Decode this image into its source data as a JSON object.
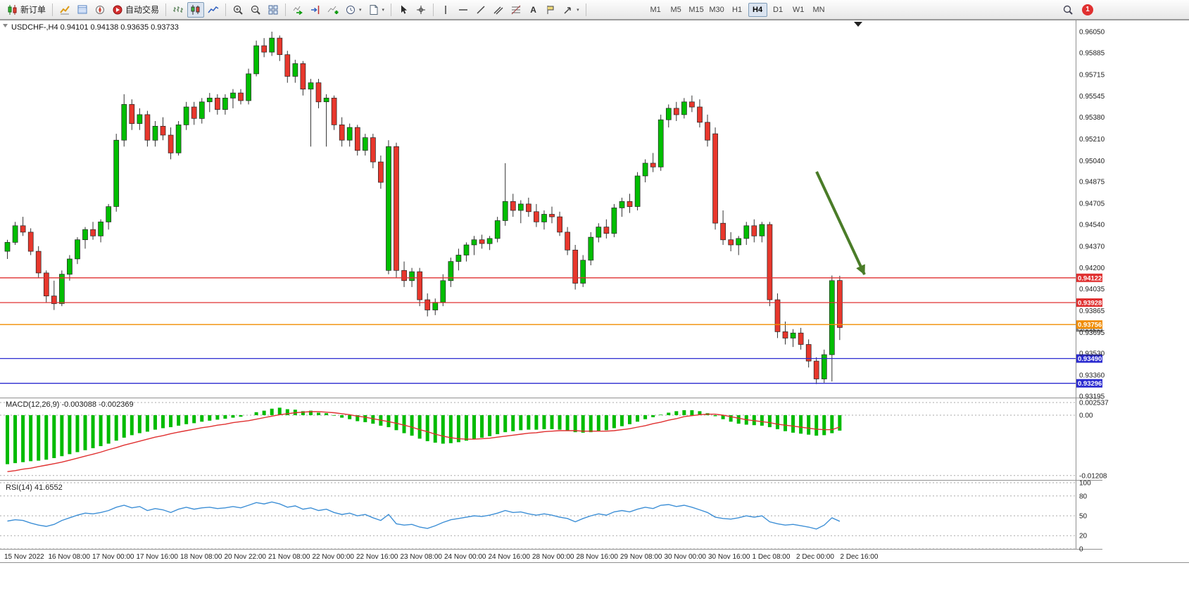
{
  "toolbar": {
    "new_order_label": "新订单",
    "auto_trading_label": "自动交易",
    "timeframes": [
      "M1",
      "M5",
      "M15",
      "M30",
      "H1",
      "H4",
      "D1",
      "W1",
      "MN"
    ],
    "active_timeframe": "H4",
    "notification_count": "1",
    "caret_glyph": "▾",
    "text_tool_glyph": "A",
    "icon_names": [
      "new-order",
      "market-watch",
      "data-window",
      "navigator",
      "auto-trading",
      "bar-chart",
      "candlestick-chart",
      "line-chart",
      "zoom-in",
      "zoom-out",
      "tile-windows",
      "auto-scroll",
      "chart-shift",
      "indicators",
      "periods",
      "templates",
      "cursor",
      "crosshair",
      "vertical-line",
      "horizontal-line",
      "trendline",
      "equidistant-channel",
      "fibonacci",
      "text",
      "text-label",
      "arrows",
      "search",
      "notifications"
    ]
  },
  "chart": {
    "header_symbol": "USDCHF-,H4",
    "header_ohlc": "0.94101 0.94138 0.93635 0.93733",
    "price_axis_labels": [
      "0.96050",
      "0.95885",
      "0.95715",
      "0.95545",
      "0.95380",
      "0.95210",
      "0.95040",
      "0.94875",
      "0.94705",
      "0.94540",
      "0.94370",
      "0.94200",
      "0.94035",
      "0.93865",
      "0.93695",
      "0.93530",
      "0.93360",
      "0.93195"
    ],
    "time_axis_labels": [
      "15 Nov 2022",
      "16 Nov 08:00",
      "17 Nov 00:00",
      "17 Nov 16:00",
      "18 Nov 08:00",
      "20 Nov 22:00",
      "21 Nov 08:00",
      "22 Nov 00:00",
      "22 Nov 16:00",
      "23 Nov 08:00",
      "24 Nov 00:00",
      "24 Nov 16:00",
      "28 Nov 00:00",
      "28 Nov 16:00",
      "29 Nov 08:00",
      "30 Nov 00:00",
      "30 Nov 16:00",
      "1 Dec 08:00",
      "2 Dec 00:00",
      "2 Dec 16:00"
    ],
    "hlines": [
      {
        "price": 0.94122,
        "label": "0.94122",
        "color": "#e03131"
      },
      {
        "price": 0.93928,
        "label": "0.93928",
        "color": "#e03131"
      },
      {
        "price": 0.93756,
        "label": "0.93756",
        "color": "#f08c00"
      },
      {
        "price": 0.9349,
        "label": "0.93490",
        "color": "#2b2bd0"
      },
      {
        "price": 0.93296,
        "label": "0.93296",
        "color": "#2b2bd0"
      }
    ],
    "current_price": {
      "label": "0.93733",
      "color": "#7a7a7a"
    },
    "arrow_annotation": {
      "color": "#4a7c28"
    },
    "colors": {
      "bull": "#00BE00",
      "bear": "#E8372C",
      "wick": "#333333",
      "macd_hist": "#00BB00",
      "macd_signal": "#E03030",
      "rsi_line": "#3D8FD6",
      "grid": "#aaaaaa",
      "frame": "#909090"
    }
  },
  "macd_panel": {
    "title": "MACD(12,26,9)",
    "value_main": "-0.003088",
    "value_signal": "-0.002369",
    "scale_labels": [
      "0.002537",
      "0.00",
      "-0.01208"
    ],
    "scale_values": [
      0.002537,
      0,
      -0.01208
    ]
  },
  "rsi_panel": {
    "title": "RSI(14)",
    "value": "41.6552",
    "scale_labels": [
      "100",
      "80",
      "50",
      "20",
      "0"
    ],
    "scale_values": [
      100,
      80,
      50,
      20,
      0
    ]
  },
  "chart_data": {
    "type": "candlestick",
    "symbol": "USDCHF-",
    "timeframe": "H4",
    "y_axis_range": [
      0.93195,
      0.9605
    ],
    "macd_axis": {
      "max": 0.002537,
      "min": -0.01208
    },
    "rsi_axis": {
      "min": 0,
      "max": 100
    },
    "ohlc": [
      [
        0.9433,
        0.9442,
        0.9427,
        0.944
      ],
      [
        0.944,
        0.9456,
        0.9438,
        0.9453
      ],
      [
        0.9453,
        0.946,
        0.9445,
        0.9448
      ],
      [
        0.9448,
        0.9451,
        0.943,
        0.9433
      ],
      [
        0.9433,
        0.9437,
        0.9412,
        0.9416
      ],
      [
        0.9416,
        0.9418,
        0.9393,
        0.9398
      ],
      [
        0.9398,
        0.941,
        0.9387,
        0.9392
      ],
      [
        0.9392,
        0.9418,
        0.939,
        0.9415
      ],
      [
        0.9415,
        0.943,
        0.941,
        0.9427
      ],
      [
        0.9427,
        0.9444,
        0.9423,
        0.9442
      ],
      [
        0.9442,
        0.9452,
        0.9435,
        0.945
      ],
      [
        0.945,
        0.9456,
        0.9442,
        0.9445
      ],
      [
        0.9445,
        0.9458,
        0.944,
        0.9456
      ],
      [
        0.9456,
        0.947,
        0.945,
        0.9468
      ],
      [
        0.9468,
        0.9525,
        0.9464,
        0.952
      ],
      [
        0.952,
        0.9556,
        0.9515,
        0.9548
      ],
      [
        0.9548,
        0.9552,
        0.9528,
        0.9533
      ],
      [
        0.9533,
        0.9545,
        0.9528,
        0.954
      ],
      [
        0.954,
        0.9543,
        0.9515,
        0.952
      ],
      [
        0.952,
        0.9535,
        0.9515,
        0.9531
      ],
      [
        0.9531,
        0.9538,
        0.952,
        0.9524
      ],
      [
        0.9524,
        0.953,
        0.9505,
        0.951
      ],
      [
        0.951,
        0.9535,
        0.9508,
        0.9532
      ],
      [
        0.9532,
        0.955,
        0.9528,
        0.9546
      ],
      [
        0.9546,
        0.955,
        0.9532,
        0.9537
      ],
      [
        0.9537,
        0.9553,
        0.9533,
        0.955
      ],
      [
        0.955,
        0.9557,
        0.9542,
        0.9553
      ],
      [
        0.9553,
        0.9556,
        0.954,
        0.9544
      ],
      [
        0.9544,
        0.9556,
        0.954,
        0.9553
      ],
      [
        0.9553,
        0.956,
        0.9545,
        0.9557
      ],
      [
        0.9557,
        0.956,
        0.9548,
        0.9551
      ],
      [
        0.9551,
        0.9576,
        0.9548,
        0.9572
      ],
      [
        0.9572,
        0.9598,
        0.957,
        0.9594
      ],
      [
        0.9594,
        0.96,
        0.9585,
        0.9589
      ],
      [
        0.9589,
        0.9605,
        0.9586,
        0.96
      ],
      [
        0.96,
        0.9602,
        0.9582,
        0.9587
      ],
      [
        0.9587,
        0.959,
        0.9565,
        0.957
      ],
      [
        0.957,
        0.9583,
        0.9565,
        0.958
      ],
      [
        0.958,
        0.9582,
        0.9555,
        0.956
      ],
      [
        0.956,
        0.9568,
        0.9515,
        0.9565
      ],
      [
        0.9565,
        0.9568,
        0.9545,
        0.955
      ],
      [
        0.955,
        0.9556,
        0.9515,
        0.9553
      ],
      [
        0.9553,
        0.9555,
        0.9528,
        0.9532
      ],
      [
        0.9532,
        0.9538,
        0.9515,
        0.952
      ],
      [
        0.952,
        0.9533,
        0.9515,
        0.953
      ],
      [
        0.953,
        0.9532,
        0.9508,
        0.9512
      ],
      [
        0.9512,
        0.9525,
        0.9508,
        0.9522
      ],
      [
        0.9522,
        0.9525,
        0.9498,
        0.9503
      ],
      [
        0.9503,
        0.9508,
        0.9482,
        0.9487
      ],
      [
        0.9418,
        0.952,
        0.9415,
        0.9515
      ],
      [
        0.9515,
        0.9518,
        0.9412,
        0.9418
      ],
      [
        0.9418,
        0.9425,
        0.9405,
        0.941
      ],
      [
        0.941,
        0.942,
        0.9405,
        0.9417
      ],
      [
        0.9417,
        0.942,
        0.939,
        0.9395
      ],
      [
        0.9395,
        0.94,
        0.9382,
        0.9387
      ],
      [
        0.9387,
        0.9396,
        0.9383,
        0.9393
      ],
      [
        0.9393,
        0.9415,
        0.939,
        0.941
      ],
      [
        0.941,
        0.9428,
        0.9405,
        0.9425
      ],
      [
        0.9425,
        0.9435,
        0.9418,
        0.943
      ],
      [
        0.943,
        0.944,
        0.9425,
        0.9438
      ],
      [
        0.9438,
        0.9445,
        0.943,
        0.9442
      ],
      [
        0.9442,
        0.9446,
        0.9435,
        0.9439
      ],
      [
        0.9439,
        0.9445,
        0.9434,
        0.9443
      ],
      [
        0.9443,
        0.946,
        0.944,
        0.9457
      ],
      [
        0.9457,
        0.9502,
        0.9453,
        0.9472
      ],
      [
        0.9472,
        0.9478,
        0.946,
        0.9465
      ],
      [
        0.9465,
        0.9473,
        0.9455,
        0.947
      ],
      [
        0.947,
        0.9475,
        0.946,
        0.9464
      ],
      [
        0.9464,
        0.947,
        0.9452,
        0.9456
      ],
      [
        0.9456,
        0.9465,
        0.945,
        0.9462
      ],
      [
        0.9462,
        0.9468,
        0.9455,
        0.946
      ],
      [
        0.946,
        0.9464,
        0.9445,
        0.9448
      ],
      [
        0.9448,
        0.9452,
        0.943,
        0.9434
      ],
      [
        0.9434,
        0.9438,
        0.9403,
        0.9408
      ],
      [
        0.9408,
        0.943,
        0.9405,
        0.9426
      ],
      [
        0.9426,
        0.9448,
        0.9422,
        0.9444
      ],
      [
        0.9444,
        0.9455,
        0.944,
        0.9452
      ],
      [
        0.9452,
        0.9458,
        0.9443,
        0.9447
      ],
      [
        0.9447,
        0.947,
        0.9444,
        0.9467
      ],
      [
        0.9467,
        0.9475,
        0.946,
        0.9472
      ],
      [
        0.9472,
        0.9478,
        0.9463,
        0.9468
      ],
      [
        0.9468,
        0.9495,
        0.9465,
        0.9492
      ],
      [
        0.9492,
        0.9505,
        0.9487,
        0.9502
      ],
      [
        0.9502,
        0.951,
        0.9495,
        0.9499
      ],
      [
        0.9499,
        0.954,
        0.9496,
        0.9536
      ],
      [
        0.9536,
        0.9548,
        0.953,
        0.9545
      ],
      [
        0.9545,
        0.955,
        0.9535,
        0.954
      ],
      [
        0.954,
        0.9553,
        0.9537,
        0.955
      ],
      [
        0.955,
        0.9555,
        0.9542,
        0.9546
      ],
      [
        0.9546,
        0.9552,
        0.953,
        0.9534
      ],
      [
        0.9534,
        0.954,
        0.9515,
        0.952
      ],
      [
        0.9525,
        0.953,
        0.945,
        0.9455
      ],
      [
        0.9455,
        0.9465,
        0.9438,
        0.9442
      ],
      [
        0.9442,
        0.9448,
        0.9433,
        0.9438
      ],
      [
        0.9438,
        0.9445,
        0.943,
        0.9443
      ],
      [
        0.9443,
        0.9456,
        0.9438,
        0.9453
      ],
      [
        0.9453,
        0.9458,
        0.944,
        0.9445
      ],
      [
        0.9445,
        0.9456,
        0.944,
        0.9454
      ],
      [
        0.9454,
        0.9456,
        0.939,
        0.9395
      ],
      [
        0.9395,
        0.94,
        0.9365,
        0.937
      ],
      [
        0.937,
        0.9378,
        0.936,
        0.9365
      ],
      [
        0.9365,
        0.9372,
        0.9358,
        0.9369
      ],
      [
        0.9369,
        0.9373,
        0.9356,
        0.936
      ],
      [
        0.936,
        0.9364,
        0.9342,
        0.9347
      ],
      [
        0.9347,
        0.935,
        0.9329,
        0.9333
      ],
      [
        0.9333,
        0.9356,
        0.933,
        0.9352
      ],
      [
        0.9352,
        0.9414,
        0.9331,
        0.941
      ],
      [
        0.94101,
        0.94138,
        0.93635,
        0.93733
      ]
    ],
    "indicators": {
      "macd_hist": [
        -0.0098,
        -0.0096,
        -0.0094,
        -0.0092,
        -0.0091,
        -0.0089,
        -0.0086,
        -0.0082,
        -0.0078,
        -0.0074,
        -0.007,
        -0.0066,
        -0.0062,
        -0.0057,
        -0.0051,
        -0.0045,
        -0.004,
        -0.0036,
        -0.0033,
        -0.0029,
        -0.0026,
        -0.0024,
        -0.0021,
        -0.0018,
        -0.0016,
        -0.0013,
        -0.0011,
        -0.0009,
        -0.0007,
        -0.0005,
        -0.0003,
        0.0,
        0.0006,
        0.0009,
        0.0013,
        0.0015,
        0.0012,
        0.0011,
        0.0008,
        0.0009,
        0.0005,
        0.0004,
        -0.0001,
        -0.0005,
        -0.0008,
        -0.0012,
        -0.0014,
        -0.0017,
        -0.0021,
        -0.0024,
        -0.003,
        -0.0036,
        -0.0041,
        -0.0047,
        -0.0052,
        -0.0055,
        -0.0057,
        -0.0056,
        -0.0054,
        -0.0051,
        -0.0048,
        -0.0045,
        -0.0042,
        -0.0038,
        -0.0034,
        -0.0032,
        -0.003,
        -0.0029,
        -0.0029,
        -0.0028,
        -0.0028,
        -0.0029,
        -0.0031,
        -0.0034,
        -0.0035,
        -0.0034,
        -0.0032,
        -0.003,
        -0.0026,
        -0.0022,
        -0.0018,
        -0.0013,
        -0.0008,
        -0.0004,
        0.0001,
        0.0005,
        0.0008,
        0.001,
        0.001,
        0.0008,
        0.0004,
        -0.0002,
        -0.0008,
        -0.0013,
        -0.0017,
        -0.0019,
        -0.002,
        -0.0021,
        -0.0024,
        -0.0028,
        -0.0032,
        -0.0035,
        -0.0037,
        -0.0039,
        -0.0041,
        -0.004,
        -0.0036,
        -0.003088
      ],
      "macd_signal": [
        -0.0113,
        -0.0111,
        -0.0108,
        -0.0106,
        -0.0103,
        -0.01,
        -0.0097,
        -0.0094,
        -0.009,
        -0.0086,
        -0.0082,
        -0.0078,
        -0.0074,
        -0.0069,
        -0.0065,
        -0.006,
        -0.0056,
        -0.0052,
        -0.0048,
        -0.0044,
        -0.0041,
        -0.0037,
        -0.0034,
        -0.0031,
        -0.0028,
        -0.0025,
        -0.0023,
        -0.002,
        -0.0018,
        -0.0015,
        -0.0013,
        -0.0011,
        -0.0008,
        -0.0005,
        -0.0002,
        0.0001,
        0.0003,
        0.0005,
        0.0006,
        0.0007,
        0.0007,
        0.0006,
        0.0005,
        0.0003,
        0.0001,
        -0.0002,
        -0.0004,
        -0.0007,
        -0.001,
        -0.0013,
        -0.0016,
        -0.002,
        -0.0024,
        -0.0029,
        -0.0033,
        -0.0038,
        -0.0042,
        -0.0045,
        -0.0047,
        -0.0048,
        -0.0048,
        -0.0047,
        -0.0046,
        -0.0044,
        -0.0042,
        -0.004,
        -0.0038,
        -0.0036,
        -0.0035,
        -0.0033,
        -0.0032,
        -0.0031,
        -0.0031,
        -0.0031,
        -0.0032,
        -0.0032,
        -0.0032,
        -0.0032,
        -0.0031,
        -0.0029,
        -0.0027,
        -0.0024,
        -0.0021,
        -0.0017,
        -0.0014,
        -0.001,
        -0.0007,
        -0.0003,
        -0.0001,
        0.0001,
        0.0002,
        0.0002,
        0.0,
        -0.0003,
        -0.0006,
        -0.0009,
        -0.0011,
        -0.0013,
        -0.0015,
        -0.0018,
        -0.002,
        -0.0022,
        -0.0024,
        -0.0026,
        -0.0028,
        -0.0029,
        -0.0029,
        -0.002369
      ],
      "rsi": [
        42,
        44,
        43,
        39,
        36,
        34,
        37,
        43,
        47,
        51,
        54,
        53,
        55,
        58,
        63,
        66,
        62,
        64,
        58,
        61,
        59,
        55,
        60,
        63,
        60,
        62,
        63,
        61,
        62,
        64,
        62,
        66,
        70,
        68,
        71,
        68,
        63,
        65,
        60,
        62,
        58,
        60,
        55,
        52,
        54,
        50,
        52,
        47,
        43,
        52,
        38,
        36,
        37,
        33,
        31,
        35,
        40,
        44,
        46,
        48,
        50,
        49,
        51,
        54,
        58,
        55,
        56,
        53,
        51,
        53,
        51,
        48,
        46,
        41,
        46,
        50,
        53,
        51,
        56,
        58,
        56,
        60,
        63,
        61,
        66,
        67,
        64,
        66,
        63,
        59,
        55,
        48,
        46,
        45,
        47,
        50,
        48,
        50,
        41,
        38,
        36,
        37,
        35,
        33,
        30,
        36,
        47,
        41.66
      ]
    }
  }
}
